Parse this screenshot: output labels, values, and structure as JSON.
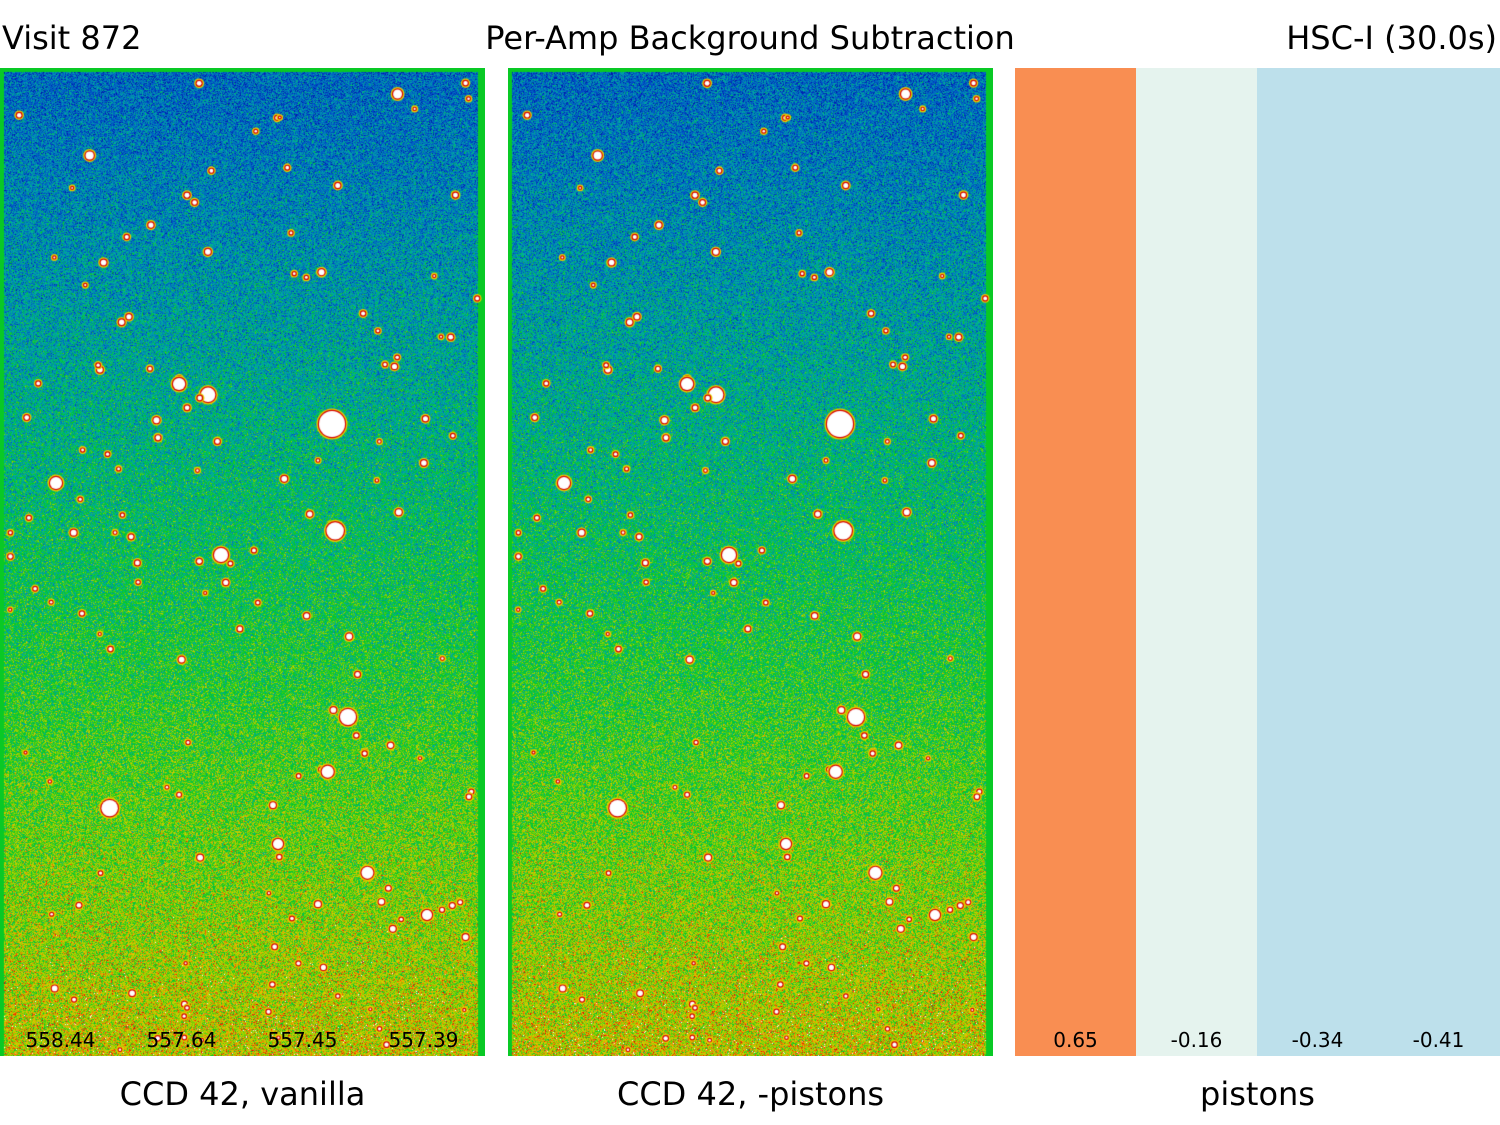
{
  "header": {
    "visit": "Visit 872",
    "title": "Per-Amp Background Subtraction",
    "filter": "HSC-I (30.0s)"
  },
  "panels": {
    "vanilla": {
      "caption": "CCD 42, vanilla",
      "amp_values": [
        "558.44",
        "557.64",
        "557.45",
        "557.39"
      ]
    },
    "minus_pistons": {
      "caption": "CCD 42, -pistons"
    },
    "pistons": {
      "caption": "pistons",
      "values": [
        "0.65",
        "-0.16",
        "-0.34",
        "-0.41"
      ],
      "colors": [
        "#f98e52",
        "#e5f3ee",
        "#bde0eb",
        "#bde0eb"
      ]
    }
  }
}
